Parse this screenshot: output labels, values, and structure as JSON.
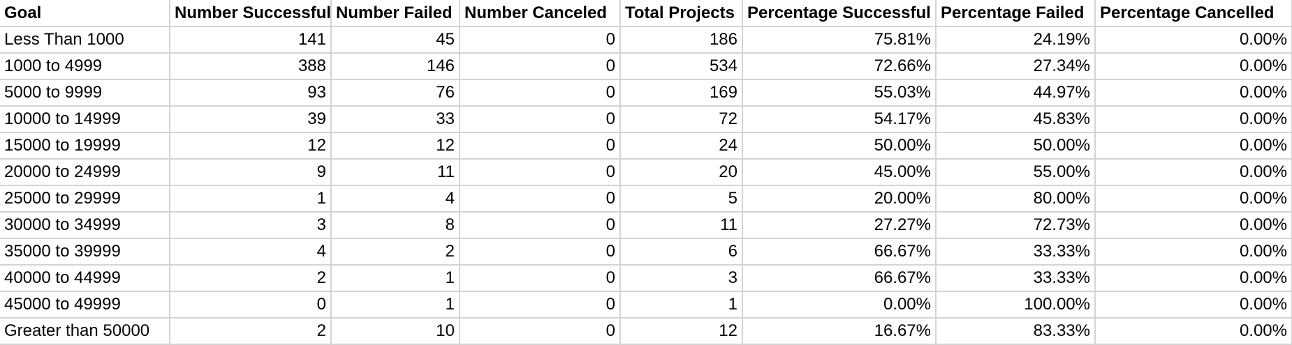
{
  "headers": [
    "Goal",
    "Number Successful",
    "Number Failed",
    "Number Canceled",
    "Total Projects",
    "Percentage Successful",
    "Percentage Failed",
    "Percentage Cancelled"
  ],
  "rows": [
    [
      "Less Than 1000",
      "141",
      "45",
      "0",
      "186",
      "75.81%",
      "24.19%",
      "0.00%"
    ],
    [
      "1000 to 4999",
      "388",
      "146",
      "0",
      "534",
      "72.66%",
      "27.34%",
      "0.00%"
    ],
    [
      "5000 to 9999",
      "93",
      "76",
      "0",
      "169",
      "55.03%",
      "44.97%",
      "0.00%"
    ],
    [
      "10000 to 14999",
      "39",
      "33",
      "0",
      "72",
      "54.17%",
      "45.83%",
      "0.00%"
    ],
    [
      "15000 to 19999",
      "12",
      "12",
      "0",
      "24",
      "50.00%",
      "50.00%",
      "0.00%"
    ],
    [
      "20000 to 24999",
      "9",
      "11",
      "0",
      "20",
      "45.00%",
      "55.00%",
      "0.00%"
    ],
    [
      "25000 to 29999",
      "1",
      "4",
      "0",
      "5",
      "20.00%",
      "80.00%",
      "0.00%"
    ],
    [
      "30000 to 34999",
      "3",
      "8",
      "0",
      "11",
      "27.27%",
      "72.73%",
      "0.00%"
    ],
    [
      "35000 to 39999",
      "4",
      "2",
      "0",
      "6",
      "66.67%",
      "33.33%",
      "0.00%"
    ],
    [
      "40000 to 44999",
      "2",
      "1",
      "0",
      "3",
      "66.67%",
      "33.33%",
      "0.00%"
    ],
    [
      "45000 to 49999",
      "0",
      "1",
      "0",
      "1",
      "0.00%",
      "100.00%",
      "0.00%"
    ],
    [
      "Greater than 50000",
      "2",
      "10",
      "0",
      "12",
      "16.67%",
      "83.33%",
      "0.00%"
    ]
  ]
}
